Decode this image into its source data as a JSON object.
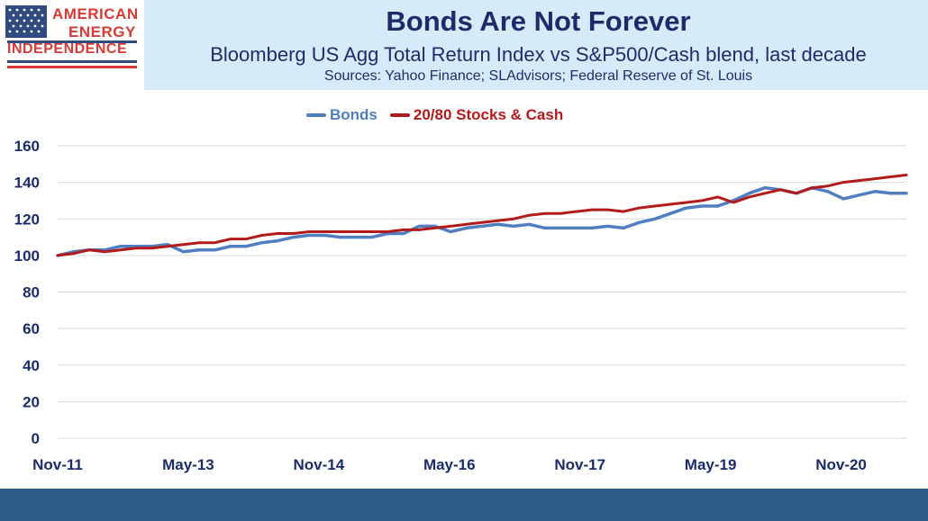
{
  "logo": {
    "line1": "AMERICAN",
    "line2": "ENERGY",
    "line3": "INDEPENDENCE",
    "icon": "us-flag-icon"
  },
  "header": {
    "title": "Bonds Are Not Forever",
    "subtitle": "Bloomberg US Agg Total Return Index vs S&P500/Cash blend, last decade",
    "sources": "Sources: Yahoo Finance; SLAdvisors; Federal Reserve of St. Louis"
  },
  "colors": {
    "bonds": "#4f7fc0",
    "stocks_cash": "#b31b1b",
    "header_bg": "#d6ebfa",
    "footer_bg": "#2f5d8a",
    "title": "#1b2c6b"
  },
  "chart_data": {
    "type": "line",
    "legend_placement": "top-center",
    "grid": true,
    "ylim": [
      0,
      160
    ],
    "yticks": [
      "0",
      "20",
      "40",
      "60",
      "80",
      "100",
      "120",
      "140",
      "160"
    ],
    "xticks": [
      "Nov-11",
      "May-13",
      "Nov-14",
      "May-16",
      "Nov-17",
      "May-19",
      "Nov-20"
    ],
    "x_months_range": [
      "Nov-11",
      "Aug-21"
    ],
    "series": [
      {
        "name": "Bonds",
        "values": [
          100,
          102,
          103,
          103,
          105,
          105,
          105,
          106,
          102,
          103,
          103,
          105,
          105,
          107,
          108,
          110,
          111,
          111,
          110,
          110,
          110,
          112,
          112,
          116,
          116,
          113,
          115,
          116,
          117,
          116,
          117,
          115,
          115,
          115,
          115,
          116,
          115,
          118,
          120,
          123,
          126,
          127,
          127,
          130,
          134,
          137,
          136,
          134,
          137,
          135,
          131,
          133,
          135,
          134,
          134
        ]
      },
      {
        "name": "20/80 Stocks & Cash",
        "values": [
          100,
          101,
          103,
          102,
          103,
          104,
          104,
          105,
          106,
          107,
          107,
          109,
          109,
          111,
          112,
          112,
          113,
          113,
          113,
          113,
          113,
          113,
          114,
          114,
          115,
          116,
          117,
          118,
          119,
          120,
          122,
          123,
          123,
          124,
          125,
          125,
          124,
          126,
          127,
          128,
          129,
          130,
          132,
          129,
          132,
          134,
          136,
          134,
          137,
          138,
          140,
          141,
          142,
          143,
          144
        ]
      }
    ]
  }
}
